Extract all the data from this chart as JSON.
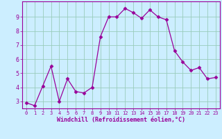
{
  "x": [
    0,
    1,
    2,
    3,
    4,
    5,
    6,
    7,
    8,
    9,
    10,
    11,
    12,
    13,
    14,
    15,
    16,
    17,
    18,
    19,
    20,
    21,
    22,
    23
  ],
  "y": [
    2.9,
    2.7,
    4.1,
    5.5,
    3.0,
    4.6,
    3.7,
    3.6,
    4.0,
    7.6,
    9.0,
    9.0,
    9.6,
    9.3,
    8.9,
    9.5,
    9.0,
    8.8,
    6.6,
    5.8,
    5.2,
    5.4,
    4.6,
    4.7
  ],
  "line_color": "#990099",
  "marker": "D",
  "marker_size": 2.5,
  "bg_color": "#cceeff",
  "grid_color": "#99ccbb",
  "xlabel": "Windchill (Refroidissement éolien,°C)",
  "xlabel_color": "#990099",
  "ylim": [
    2.5,
    10.1
  ],
  "xlim": [
    -0.5,
    23.5
  ],
  "yticks": [
    3,
    4,
    5,
    6,
    7,
    8,
    9
  ],
  "xticks": [
    0,
    1,
    2,
    3,
    4,
    5,
    6,
    7,
    8,
    9,
    10,
    11,
    12,
    13,
    14,
    15,
    16,
    17,
    18,
    19,
    20,
    21,
    22,
    23
  ],
  "tick_color": "#990099",
  "spine_color": "#990099"
}
